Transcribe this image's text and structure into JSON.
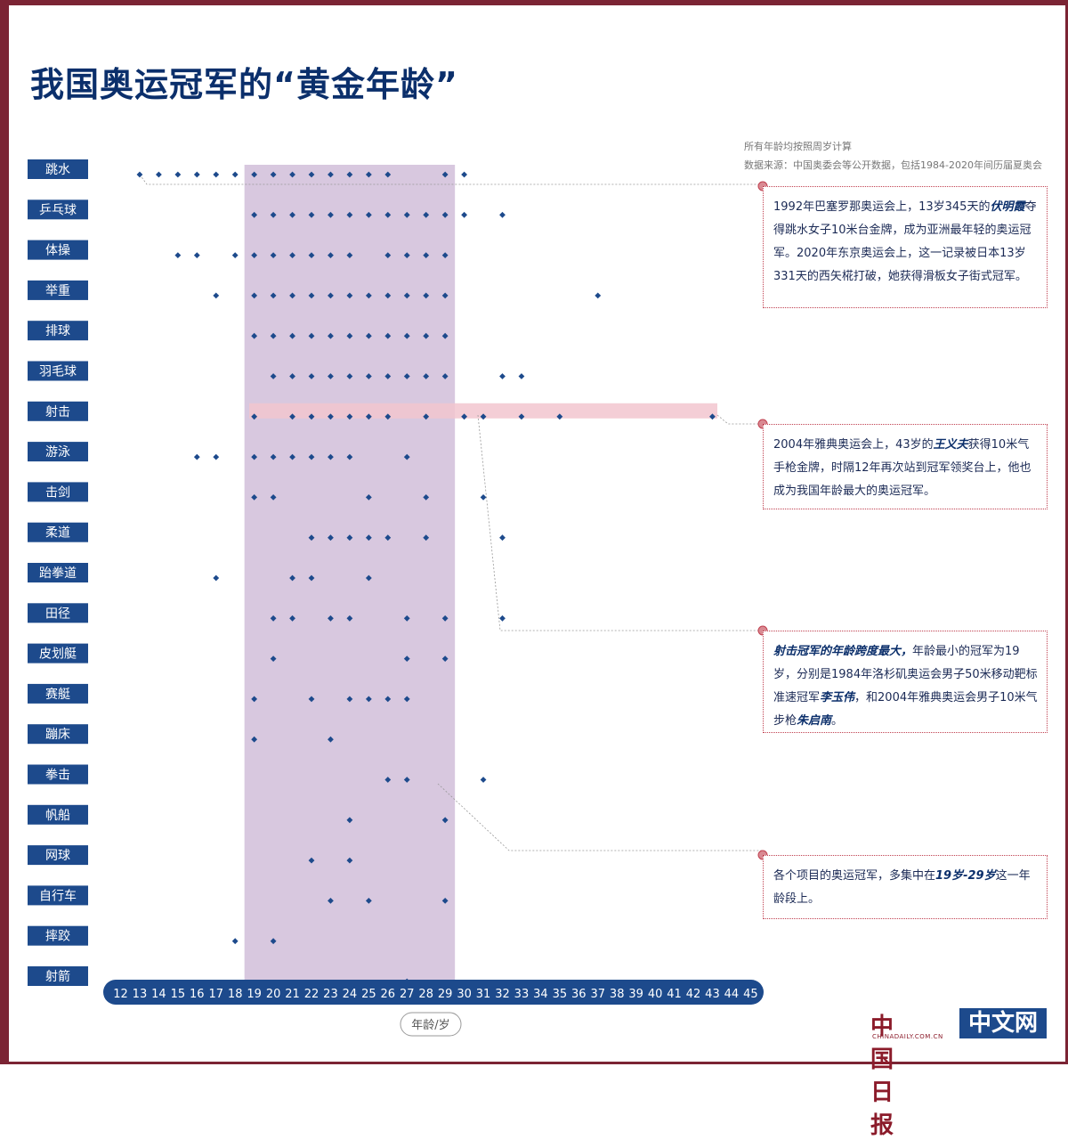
{
  "title": "我国奥运冠军的“黄金年龄”",
  "notes": {
    "line1": "所有年龄均按照周岁计算",
    "line2": "数据来源：中国奥委会等公开数据，包括1984-2020年间历届夏奥会"
  },
  "colors": {
    "frame": "#7b2434",
    "title": "#0b2f6b",
    "label_bg": "#1d4a8c",
    "dot": "#1d4a8c",
    "highlight_band": "#d8c8df",
    "shooting_band": "#f2c6cf",
    "callout": "#c04050"
  },
  "annotations": [
    {
      "parts": [
        {
          "text": "1992年巴塞罗那奥运会上，13岁345天的",
          "em": false
        },
        {
          "text": "伏明霞",
          "em": true
        },
        {
          "text": "夺得跳水女子10米台金牌，成为亚洲最年轻的奥运冠军。2020年东京奥运会上，这一记录被日本13岁331天的西矢椛打破，她获得滑板女子街式冠军。",
          "em": false
        }
      ]
    },
    {
      "parts": [
        {
          "text": "2004年雅典奥运会上，43岁的",
          "em": false
        },
        {
          "text": "王义夫",
          "em": true
        },
        {
          "text": "获得10米气手枪金牌，时隔12年再次站到冠军领奖台上，他也成为我国年龄最大的奥运冠军。",
          "em": false
        }
      ]
    },
    {
      "parts": [
        {
          "text": "射击冠军的年龄跨度最大，",
          "em": true
        },
        {
          "text": "年龄最小的冠军为19岁，分别是1984年洛杉矶奥运会男子50米移动靶标准速冠军",
          "em": false
        },
        {
          "text": "李玉伟",
          "em": true
        },
        {
          "text": "，和2004年雅典奥运会男子10米气步枪",
          "em": false
        },
        {
          "text": "朱启南",
          "em": true
        },
        {
          "text": "。",
          "em": false
        }
      ]
    },
    {
      "parts": [
        {
          "text": "各个项目的奥运冠军，多集中在",
          "em": false
        },
        {
          "text": "19岁-29岁",
          "em": true
        },
        {
          "text": "这一年龄段上。",
          "em": false
        }
      ]
    }
  ],
  "logo": {
    "brand": "中国日报",
    "box_text": "中文网",
    "sub_text": "CHINADAILY.COM.CN"
  },
  "chart_data": {
    "type": "scatter",
    "xlabel": "年龄/岁",
    "x_ticks": [
      12,
      13,
      14,
      15,
      16,
      17,
      18,
      19,
      20,
      21,
      22,
      23,
      24,
      25,
      26,
      27,
      28,
      29,
      30,
      31,
      32,
      33,
      34,
      35,
      36,
      37,
      38,
      39,
      40,
      41,
      42,
      43,
      44,
      45
    ],
    "x_range": [
      12,
      45
    ],
    "highlight_range": [
      19,
      29
    ],
    "categories": [
      "跳水",
      "乒乓球",
      "体操",
      "举重",
      "排球",
      "羽毛球",
      "射击",
      "游泳",
      "击剑",
      "柔道",
      "跆拳道",
      "田径",
      "皮划艇",
      "赛艇",
      "蹦床",
      "拳击",
      "帆船",
      "网球",
      "自行车",
      "摔跤",
      "射箭"
    ],
    "series": [
      {
        "category": "跳水",
        "ages": [
          13,
          14,
          15,
          16,
          17,
          18,
          19,
          20,
          21,
          22,
          23,
          24,
          25,
          26,
          29,
          30
        ]
      },
      {
        "category": "乒乓球",
        "ages": [
          19,
          20,
          21,
          22,
          23,
          24,
          25,
          26,
          27,
          28,
          29,
          30,
          32
        ]
      },
      {
        "category": "体操",
        "ages": [
          15,
          16,
          18,
          19,
          20,
          21,
          22,
          23,
          24,
          26,
          27,
          28,
          29
        ]
      },
      {
        "category": "举重",
        "ages": [
          17,
          19,
          20,
          21,
          22,
          23,
          24,
          25,
          26,
          27,
          28,
          29,
          37
        ]
      },
      {
        "category": "排球",
        "ages": [
          19,
          20,
          21,
          22,
          23,
          24,
          25,
          26,
          27,
          28,
          29
        ]
      },
      {
        "category": "羽毛球",
        "ages": [
          20,
          21,
          22,
          23,
          24,
          25,
          26,
          27,
          28,
          29,
          32,
          33
        ]
      },
      {
        "category": "射击",
        "ages": [
          19,
          21,
          22,
          23,
          24,
          25,
          26,
          28,
          30,
          31,
          33,
          35,
          43
        ]
      },
      {
        "category": "游泳",
        "ages": [
          16,
          17,
          19,
          20,
          21,
          22,
          23,
          24,
          27
        ]
      },
      {
        "category": "击剑",
        "ages": [
          19,
          20,
          25,
          28,
          31
        ]
      },
      {
        "category": "柔道",
        "ages": [
          22,
          23,
          24,
          25,
          26,
          28,
          32
        ]
      },
      {
        "category": "跆拳道",
        "ages": [
          17,
          21,
          22,
          25
        ]
      },
      {
        "category": "田径",
        "ages": [
          20,
          21,
          23,
          24,
          27,
          29,
          32
        ]
      },
      {
        "category": "皮划艇",
        "ages": [
          20,
          27,
          29
        ]
      },
      {
        "category": "赛艇",
        "ages": [
          19,
          22,
          24,
          25,
          26,
          27
        ]
      },
      {
        "category": "蹦床",
        "ages": [
          19,
          23
        ]
      },
      {
        "category": "拳击",
        "ages": [
          26,
          27,
          31
        ]
      },
      {
        "category": "帆船",
        "ages": [
          24,
          29
        ]
      },
      {
        "category": "网球",
        "ages": [
          22,
          24
        ]
      },
      {
        "category": "自行车",
        "ages": [
          23,
          25,
          29
        ]
      },
      {
        "category": "摔跤",
        "ages": [
          18,
          20
        ]
      },
      {
        "category": "射箭",
        "ages": [
          27
        ]
      }
    ]
  }
}
